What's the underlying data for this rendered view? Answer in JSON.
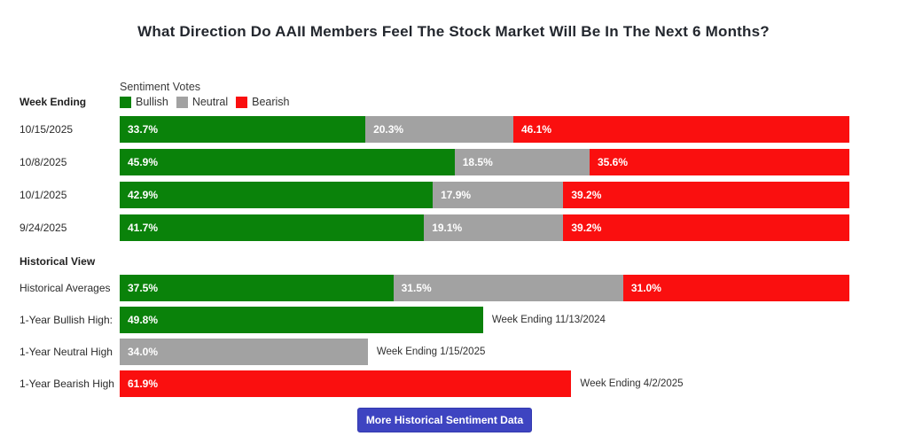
{
  "title": "What Direction Do AAII Members Feel The Stock Market Will Be In The Next 6 Months?",
  "colors": {
    "bullish": "#0a820a",
    "neutral": "#a2a2a2",
    "bearish": "#fa0f0f",
    "button": "#3e44c1"
  },
  "week_ending_header": "Week Ending",
  "historical_header": "Historical View",
  "legend": {
    "title": "Sentiment Votes",
    "items": [
      {
        "key": "bullish",
        "label": "Bullish"
      },
      {
        "key": "neutral",
        "label": "Neutral"
      },
      {
        "key": "bearish",
        "label": "Bearish"
      }
    ]
  },
  "button_label": "More Historical Sentiment Data",
  "chart_data": {
    "type": "bar",
    "orientation": "horizontal",
    "stacked": true,
    "unit": "%",
    "xlim": [
      0,
      100
    ],
    "title": "What Direction Do AAII Members Feel The Stock Market Will Be In The Next 6 Months?",
    "legend_title": "Sentiment Votes",
    "series_names": [
      "Bullish",
      "Neutral",
      "Bearish"
    ],
    "weekly": [
      {
        "week_ending": "10/15/2025",
        "bullish": 33.7,
        "neutral": 20.3,
        "bearish": 46.1
      },
      {
        "week_ending": "10/8/2025",
        "bullish": 45.9,
        "neutral": 18.5,
        "bearish": 35.6
      },
      {
        "week_ending": "10/1/2025",
        "bullish": 42.9,
        "neutral": 17.9,
        "bearish": 39.2
      },
      {
        "week_ending": "9/24/2025",
        "bullish": 41.7,
        "neutral": 19.1,
        "bearish": 39.2
      }
    ],
    "historical": [
      {
        "label": "Historical Averages",
        "bullish": 37.5,
        "neutral": 31.5,
        "bearish": 31.0
      },
      {
        "label": "1-Year Bullish High:",
        "series": "bullish",
        "value": 49.8,
        "annotation": "Week Ending 11/13/2024"
      },
      {
        "label": "1-Year Neutral High",
        "series": "neutral",
        "value": 34.0,
        "annotation": "Week Ending 1/15/2025"
      },
      {
        "label": "1-Year Bearish High",
        "series": "bearish",
        "value": 61.9,
        "annotation": "Week Ending 4/2/2025"
      }
    ]
  }
}
